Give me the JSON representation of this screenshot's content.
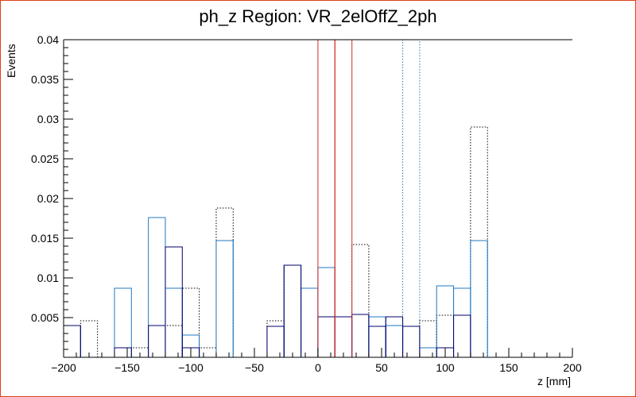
{
  "chart_data": {
    "type": "bar",
    "title": "ph_z Region: VR_2elOffZ_2ph",
    "xlabel": "z [mm]",
    "ylabel": "Events",
    "xlim": [
      -200,
      200
    ],
    "ylim": [
      0,
      0.04
    ],
    "x_ticks": [
      -200,
      -150,
      -100,
      -50,
      0,
      50,
      100,
      150,
      200
    ],
    "y_ticks": [
      0.005,
      0.01,
      0.015,
      0.02,
      0.025,
      0.03,
      0.035,
      0.04
    ],
    "x_tick_labels": [
      "−200",
      "−150",
      "−100",
      "−50",
      "0",
      "50",
      "100",
      "150",
      "200"
    ],
    "y_tick_labels": [
      "0.005",
      "0.01",
      "0.015",
      "0.02",
      "0.025",
      "0.03",
      "0.035",
      "0.04"
    ],
    "bin_width": 13.33,
    "bin_start": -200,
    "grid": false,
    "vertical_lines": [
      13.3,
      26.7
    ],
    "series": [
      {
        "style": "dotted-black",
        "values": [
          0.004,
          0.0046,
          0,
          0,
          0.0012,
          0,
          0.004,
          0.0087,
          0.0012,
          0.0188,
          0,
          0,
          0.0046,
          0.0116,
          0.0087,
          0.0113,
          0.0051,
          0.0142,
          0.0051,
          0.004,
          0,
          0.0046,
          0.0053,
          0,
          0.029,
          0,
          0,
          0,
          0,
          0
        ]
      },
      {
        "style": "dotted-blue",
        "values": [
          0.004,
          0,
          0,
          0,
          0,
          0,
          0,
          0,
          0,
          0.0147,
          0,
          0,
          0,
          0,
          0,
          0,
          0,
          0,
          0,
          0,
          0.04,
          0,
          0,
          0,
          0.0147,
          0,
          0,
          0,
          0,
          0
        ]
      },
      {
        "style": "solid-lightblue",
        "values": [
          0.004,
          0,
          0,
          0.0087,
          0,
          0.0176,
          0.0087,
          0.0028,
          0,
          0.0147,
          0,
          0,
          0,
          0.0116,
          0.0087,
          0.0113,
          0.0051,
          0.0054,
          0.0051,
          0.004,
          0,
          0.0012,
          0.009,
          0.0087,
          0.0147,
          0,
          0,
          0,
          0,
          0
        ]
      },
      {
        "style": "solid-navy",
        "values": [
          0.004,
          0,
          0,
          0.0012,
          0,
          0.004,
          0.0139,
          0.0012,
          0,
          0,
          0,
          0,
          0.0039,
          0.0116,
          0,
          0.0051,
          0.0051,
          0.0054,
          0.0039,
          0.0051,
          0.0039,
          0,
          0.0012,
          0.0053,
          0,
          0,
          0,
          0,
          0,
          0
        ]
      },
      {
        "style": "solid-red",
        "values": [
          0,
          0,
          0,
          0,
          0,
          0,
          0,
          0,
          0,
          0,
          0,
          0,
          0,
          0,
          0,
          0.04,
          0,
          0,
          0,
          0,
          0,
          0,
          0,
          0,
          0,
          0,
          0,
          0,
          0,
          0
        ]
      }
    ]
  }
}
